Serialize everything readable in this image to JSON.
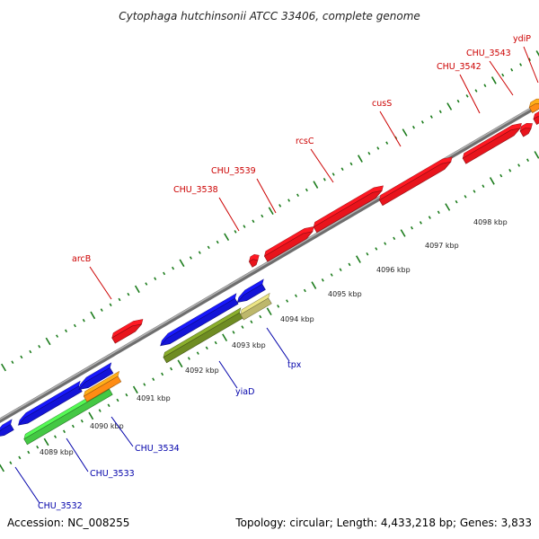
{
  "title": "Cytophaga hutchinsonii ATCC 33406, complete genome",
  "footer": {
    "accession": "Accession: NC_008255",
    "summary": "Topology: circular; Length: 4,433,218 bp; Genes: 3,833"
  },
  "scale_labels": [
    "4089 kbp",
    "4090 kbp",
    "4091 kbp",
    "4092 kbp",
    "4093 kbp",
    "4094 kbp",
    "4095 kbp",
    "4096 kbp",
    "4097 kbp",
    "4098 kbp"
  ],
  "gene_labels": [
    "CHU_3532",
    "CHU_3533",
    "CHU_3534",
    "yiaD",
    "tpx",
    "arcB",
    "CHU_3538",
    "CHU_3539",
    "rcsC",
    "cusS",
    "CHU_3542",
    "CHU_3543",
    "ydiP"
  ],
  "colors": {
    "forward_label": "#cc0000",
    "reverse_label": "#0000aa",
    "red": "#e8141c",
    "blue": "#1414d8",
    "green": "#44c844",
    "orange": "#ff8c14",
    "olive": "#6f8c23",
    "khaki": "#bdb76b",
    "tick": "#1c7c1c",
    "backbone": "#8c8c8c"
  }
}
